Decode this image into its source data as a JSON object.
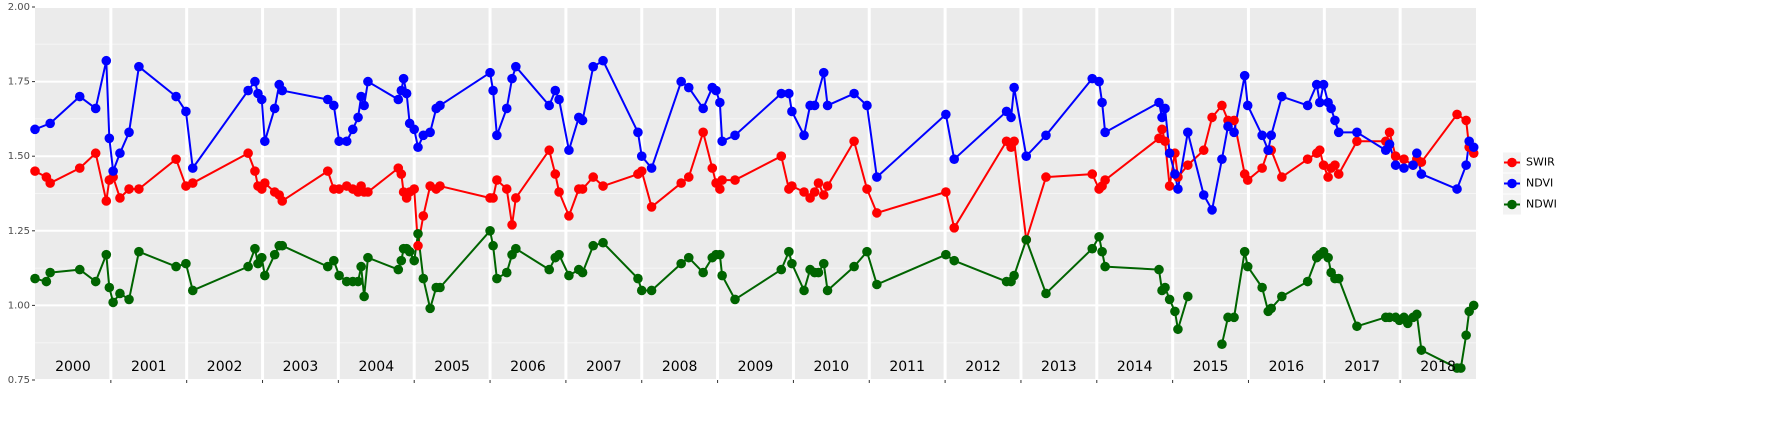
{
  "chart_data": {
    "type": "line",
    "xlim": [
      2000,
      2019
    ],
    "xticks": [
      2001,
      2002,
      2003,
      2004,
      2005,
      2006,
      2007,
      2008,
      2009,
      2010,
      2011,
      2012,
      2013,
      2014,
      2015,
      2016,
      2017,
      2018
    ],
    "ylim": [
      0.75,
      2.0
    ],
    "yticks": [
      {
        "value": 0.75,
        "label": "0.75"
      },
      {
        "value": 1.0,
        "label": "1.00"
      },
      {
        "value": 1.25,
        "label": "1.25"
      },
      {
        "value": 1.5,
        "label": "1.50"
      },
      {
        "value": 1.75,
        "label": "1.75"
      },
      {
        "value": 2.0,
        "label": "2.00"
      }
    ],
    "grid": true,
    "legend": "right",
    "annotations": [
      "2000",
      "2001",
      "2002",
      "2003",
      "2004",
      "2005",
      "2006",
      "2007",
      "2008",
      "2009",
      "2010",
      "2011",
      "2012",
      "2013",
      "2014",
      "2015",
      "2016",
      "2017",
      "2018"
    ],
    "series": [
      {
        "name": "SWIR",
        "color": "#ff0000",
        "x": [
          2000.0,
          2000.15,
          2000.2,
          2000.59,
          2000.8,
          2000.94,
          2000.98,
          2001.03,
          2001.12,
          2001.24,
          2001.37,
          2001.86,
          2001.99,
          2002.08,
          2002.81,
          2002.9,
          2002.94,
          2002.99,
          2003.03,
          2003.16,
          2003.22,
          2003.26,
          2003.86,
          2003.94,
          2004.01,
          2004.11,
          2004.19,
          2004.26,
          2004.3,
          2004.34,
          2004.39,
          2004.79,
          2004.83,
          2004.86,
          2004.9,
          2004.94,
          2005.0,
          2005.05,
          2005.12,
          2005.21,
          2005.29,
          2005.34,
          2006.0,
          2006.04,
          2006.09,
          2006.22,
          2006.29,
          2006.34,
          2006.78,
          2006.86,
          2006.91,
          2007.04,
          2007.17,
          2007.22,
          2007.36,
          2007.49,
          2007.95,
          2008.0,
          2008.13,
          2008.52,
          2008.62,
          2008.81,
          2008.93,
          2008.98,
          2009.03,
          2009.06,
          2009.23,
          2009.84,
          2009.94,
          2009.98,
          2010.14,
          2010.22,
          2010.28,
          2010.33,
          2010.4,
          2010.45,
          2010.8,
          2010.97,
          2011.1,
          2012.01,
          2012.12,
          2012.81,
          2012.87,
          2012.91,
          2013.07,
          2013.33,
          2013.94,
          2014.03,
          2014.07,
          2014.11,
          2014.82,
          2014.86,
          2014.9,
          2014.96,
          2015.03,
          2015.07,
          2015.2,
          2015.41,
          2015.52,
          2015.65,
          2015.73,
          2015.81,
          2015.95,
          2015.99,
          2016.18,
          2016.26,
          2016.3,
          2016.44,
          2016.78,
          2016.9,
          2016.94,
          2016.99,
          2017.05,
          2017.09,
          2017.14,
          2017.19,
          2017.43,
          2017.81,
          2017.86,
          2017.94,
          2018.05,
          2018.17,
          2018.22,
          2018.28,
          2018.75,
          2018.87,
          2018.91,
          2018.97
        ],
        "values": [
          1.45,
          1.43,
          1.41,
          1.46,
          1.51,
          1.35,
          1.42,
          1.43,
          1.36,
          1.39,
          1.39,
          1.49,
          1.4,
          1.41,
          1.51,
          1.45,
          1.4,
          1.39,
          1.41,
          1.38,
          1.37,
          1.35,
          1.45,
          1.39,
          1.39,
          1.4,
          1.39,
          1.38,
          1.4,
          1.38,
          1.38,
          1.46,
          1.44,
          1.38,
          1.36,
          1.38,
          1.39,
          1.2,
          1.3,
          1.4,
          1.39,
          1.4,
          1.36,
          1.36,
          1.42,
          1.39,
          1.27,
          1.36,
          1.52,
          1.44,
          1.38,
          1.3,
          1.39,
          1.39,
          1.43,
          1.4,
          1.44,
          1.45,
          1.33,
          1.41,
          1.43,
          1.58,
          1.46,
          1.41,
          1.39,
          1.42,
          1.42,
          1.5,
          1.39,
          1.4,
          1.38,
          1.36,
          1.38,
          1.41,
          1.37,
          1.4,
          1.55,
          1.39,
          1.31,
          1.38,
          1.26,
          1.55,
          1.53,
          1.55,
          1.22,
          1.43,
          1.44,
          1.39,
          1.4,
          1.42,
          1.56,
          1.59,
          1.55,
          1.4,
          1.51,
          1.43,
          1.47,
          1.52,
          1.63,
          1.67,
          1.62,
          1.62,
          1.44,
          1.42,
          1.46,
          1.52,
          1.52,
          1.43,
          1.49,
          1.51,
          1.52,
          1.47,
          1.43,
          1.46,
          1.47,
          1.44,
          1.55,
          1.55,
          1.58,
          1.5,
          1.49,
          1.47,
          1.49,
          1.48,
          1.64,
          1.62,
          1.53,
          1.51
        ]
      },
      {
        "name": "NDVI",
        "color": "#0000ff",
        "x": [
          2000.0,
          2000.2,
          2000.59,
          2000.8,
          2000.94,
          2000.98,
          2001.03,
          2001.12,
          2001.24,
          2001.37,
          2001.86,
          2001.99,
          2002.08,
          2002.81,
          2002.9,
          2002.94,
          2002.99,
          2003.03,
          2003.16,
          2003.22,
          2003.26,
          2003.86,
          2003.94,
          2004.01,
          2004.11,
          2004.19,
          2004.26,
          2004.3,
          2004.34,
          2004.39,
          2004.79,
          2004.83,
          2004.86,
          2004.9,
          2004.94,
          2005.0,
          2005.05,
          2005.12,
          2005.21,
          2005.29,
          2005.34,
          2006.0,
          2006.04,
          2006.09,
          2006.22,
          2006.29,
          2006.34,
          2006.78,
          2006.86,
          2006.91,
          2007.04,
          2007.17,
          2007.22,
          2007.36,
          2007.49,
          2007.95,
          2008.0,
          2008.13,
          2008.52,
          2008.62,
          2008.81,
          2008.93,
          2008.98,
          2009.03,
          2009.06,
          2009.23,
          2009.84,
          2009.94,
          2009.98,
          2010.14,
          2010.22,
          2010.28,
          2010.4,
          2010.45,
          2010.8,
          2010.97,
          2011.1,
          2012.01,
          2012.12,
          2012.81,
          2012.87,
          2012.91,
          2013.07,
          2013.33,
          2013.94,
          2014.03,
          2014.07,
          2014.11,
          2014.82,
          2014.86,
          2014.9,
          2014.96,
          2015.03,
          2015.07,
          2015.2,
          2015.41,
          2015.52,
          2015.65,
          2015.73,
          2015.81,
          2015.95,
          2015.99,
          2016.18,
          2016.26,
          2016.3,
          2016.44,
          2016.78,
          2016.9,
          2016.94,
          2016.99,
          2017.05,
          2017.09,
          2017.14,
          2017.19,
          2017.43,
          2017.81,
          2017.86,
          2017.94,
          2018.05,
          2018.17,
          2018.22,
          2018.28,
          2018.75,
          2018.87,
          2018.91,
          2018.97
        ],
        "values": [
          1.59,
          1.61,
          1.7,
          1.66,
          1.82,
          1.56,
          1.45,
          1.51,
          1.58,
          1.8,
          1.7,
          1.65,
          1.46,
          1.72,
          1.75,
          1.71,
          1.69,
          1.55,
          1.66,
          1.74,
          1.72,
          1.69,
          1.67,
          1.55,
          1.55,
          1.59,
          1.63,
          1.7,
          1.67,
          1.75,
          1.69,
          1.72,
          1.76,
          1.71,
          1.61,
          1.59,
          1.53,
          1.57,
          1.58,
          1.66,
          1.67,
          1.78,
          1.72,
          1.57,
          1.66,
          1.76,
          1.8,
          1.67,
          1.72,
          1.69,
          1.52,
          1.63,
          1.62,
          1.8,
          1.82,
          1.58,
          1.5,
          1.46,
          1.75,
          1.73,
          1.66,
          1.73,
          1.72,
          1.68,
          1.55,
          1.57,
          1.71,
          1.71,
          1.65,
          1.57,
          1.67,
          1.67,
          1.78,
          1.67,
          1.71,
          1.67,
          1.43,
          1.64,
          1.49,
          1.65,
          1.63,
          1.73,
          1.5,
          1.57,
          1.76,
          1.75,
          1.68,
          1.58,
          1.68,
          1.63,
          1.66,
          1.51,
          1.44,
          1.39,
          1.58,
          1.37,
          1.32,
          1.49,
          1.6,
          1.58,
          1.77,
          1.67,
          1.57,
          1.52,
          1.57,
          1.7,
          1.67,
          1.74,
          1.68,
          1.74,
          1.68,
          1.66,
          1.62,
          1.58,
          1.58,
          1.52,
          1.54,
          1.47,
          1.46,
          1.47,
          1.51,
          1.44,
          1.39,
          1.47,
          1.55,
          1.53
        ]
      },
      {
        "name": "NDWI",
        "color": "#006400",
        "x": [
          2000.0,
          2000.15,
          2000.2,
          2000.59,
          2000.8,
          2000.94,
          2000.98,
          2001.03,
          2001.12,
          2001.24,
          2001.37,
          2001.86,
          2001.99,
          2002.08,
          2002.81,
          2002.9,
          2002.94,
          2002.99,
          2003.03,
          2003.16,
          2003.22,
          2003.26,
          2003.86,
          2003.94,
          2004.01,
          2004.11,
          2004.19,
          2004.26,
          2004.3,
          2004.34,
          2004.39,
          2004.79,
          2004.83,
          2004.86,
          2004.9,
          2004.94,
          2005.0,
          2005.05,
          2005.12,
          2005.21,
          2005.29,
          2005.34,
          2006.0,
          2006.04,
          2006.09,
          2006.22,
          2006.29,
          2006.34,
          2006.78,
          2006.86,
          2006.91,
          2007.04,
          2007.17,
          2007.22,
          2007.36,
          2007.49,
          2007.95,
          2008.0,
          2008.13,
          2008.52,
          2008.62,
          2008.81,
          2008.93,
          2008.98,
          2009.03,
          2009.06,
          2009.23,
          2009.84,
          2009.94,
          2009.98,
          2010.14,
          2010.22,
          2010.28,
          2010.33,
          2010.4,
          2010.45,
          2010.8,
          2010.97,
          2011.1,
          2012.01,
          2012.12,
          2012.81,
          2012.87,
          2012.91,
          2013.07,
          2013.33,
          2013.94,
          2014.03,
          2014.07,
          2014.11,
          2014.82,
          2014.86,
          2014.9,
          2014.96,
          2015.03,
          2015.07,
          2015.2,
          null,
          2015.65,
          2015.73,
          2015.81,
          2015.95,
          2015.99,
          2016.18,
          2016.26,
          2016.3,
          2016.44,
          2016.78,
          2016.9,
          2016.94,
          2016.99,
          2017.05,
          2017.09,
          2017.14,
          2017.19,
          2017.43,
          2017.81,
          2017.86,
          2017.94,
          2017.99,
          2018.05,
          2018.1,
          2018.17,
          2018.22,
          2018.28,
          2018.75,
          2018.8,
          2018.87,
          2018.91,
          2018.97
        ],
        "values": [
          1.09,
          1.08,
          1.11,
          1.12,
          1.08,
          1.17,
          1.06,
          1.01,
          1.04,
          1.02,
          1.18,
          1.13,
          1.14,
          1.05,
          1.13,
          1.19,
          1.14,
          1.16,
          1.1,
          1.17,
          1.2,
          1.2,
          1.13,
          1.15,
          1.1,
          1.08,
          1.08,
          1.08,
          1.13,
          1.03,
          1.16,
          1.12,
          1.15,
          1.19,
          1.19,
          1.18,
          1.15,
          1.24,
          1.09,
          0.99,
          1.06,
          1.06,
          1.25,
          1.2,
          1.09,
          1.11,
          1.17,
          1.19,
          1.12,
          1.16,
          1.17,
          1.1,
          1.12,
          1.11,
          1.2,
          1.21,
          1.09,
          1.05,
          1.05,
          1.14,
          1.16,
          1.11,
          1.16,
          1.17,
          1.17,
          1.1,
          1.02,
          1.12,
          1.18,
          1.14,
          1.05,
          1.12,
          1.11,
          1.11,
          1.14,
          1.05,
          1.13,
          1.18,
          1.07,
          1.17,
          1.15,
          1.08,
          1.08,
          1.1,
          1.22,
          1.04,
          1.19,
          1.23,
          1.18,
          1.13,
          1.12,
          1.05,
          1.06,
          1.02,
          0.98,
          0.92,
          1.03,
          null,
          0.87,
          0.96,
          0.96,
          1.18,
          1.13,
          1.06,
          0.98,
          0.99,
          1.03,
          1.08,
          1.16,
          1.17,
          1.18,
          1.16,
          1.11,
          1.09,
          1.09,
          0.93,
          0.96,
          0.96,
          0.96,
          0.95,
          0.96,
          0.94,
          0.96,
          0.97,
          0.85,
          0.79,
          0.79,
          0.9,
          0.98,
          1.0
        ]
      }
    ]
  }
}
